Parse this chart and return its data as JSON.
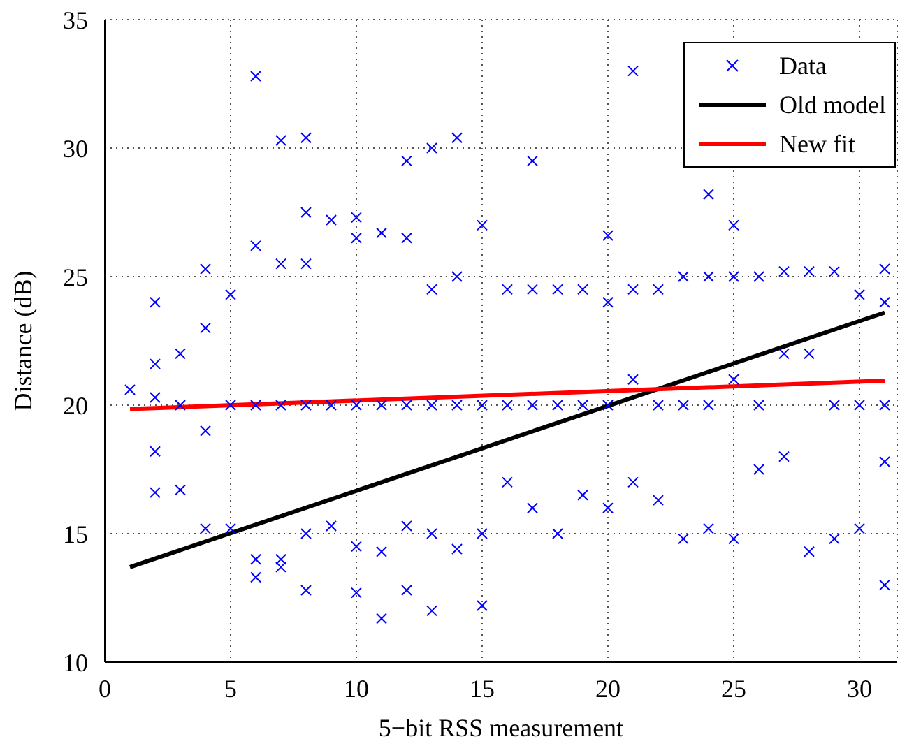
{
  "chart_data": {
    "type": "scatter",
    "xlabel": "5−bit RSS measurement",
    "ylabel": "Distance (dB)",
    "xlim": [
      0,
      31.5
    ],
    "xticks": [
      0,
      5,
      10,
      15,
      20,
      25,
      30
    ],
    "ylim": [
      10,
      35
    ],
    "yticks": [
      10,
      15,
      20,
      25,
      30,
      35
    ],
    "grid": true,
    "legend": "top right",
    "series": [
      {
        "name": "Data",
        "marker": "cross",
        "color": "#0000ff",
        "x": [
          1,
          2,
          2,
          2,
          2,
          2,
          3,
          3,
          3,
          4,
          4,
          4,
          4,
          5,
          5,
          5,
          6,
          6,
          6,
          6,
          6,
          7,
          7,
          7,
          7,
          7,
          8,
          8,
          8,
          8,
          8,
          8,
          9,
          9,
          9,
          10,
          10,
          10,
          10,
          10,
          11,
          11,
          11,
          11,
          12,
          12,
          12,
          12,
          12,
          13,
          13,
          13,
          13,
          13,
          14,
          14,
          14,
          14,
          15,
          15,
          15,
          15,
          16,
          16,
          16,
          17,
          17,
          17,
          17,
          18,
          18,
          18,
          19,
          19,
          19,
          20,
          20,
          20,
          20,
          21,
          21,
          21,
          21,
          22,
          22,
          22,
          23,
          23,
          23,
          24,
          24,
          24,
          24,
          25,
          25,
          25,
          25,
          26,
          26,
          26,
          27,
          27,
          27,
          28,
          28,
          28,
          29,
          29,
          29,
          30,
          30,
          30,
          31,
          31,
          31,
          31,
          31
        ],
        "values": [
          20.6,
          24,
          21.6,
          20.3,
          18.2,
          16.6,
          22,
          20,
          16.7,
          25.3,
          23,
          19,
          15.2,
          24.3,
          20,
          15.2,
          32.8,
          26.2,
          20,
          14,
          13.3,
          30.3,
          25.5,
          20,
          14,
          13.7,
          30.4,
          27.5,
          25.5,
          20,
          15,
          12.8,
          27.2,
          20,
          15.3,
          27.3,
          26.5,
          20,
          14.5,
          12.7,
          26.7,
          20,
          14.3,
          11.7,
          29.5,
          26.5,
          20,
          15.3,
          12.8,
          30,
          24.5,
          20,
          15,
          12,
          30.4,
          25,
          20,
          14.4,
          27,
          20,
          15,
          12.2,
          24.5,
          20,
          17,
          29.5,
          24.5,
          20,
          16,
          24.5,
          20,
          15,
          24.5,
          20,
          16.5,
          26.6,
          24,
          20,
          16,
          33,
          24.5,
          21,
          17,
          24.5,
          20,
          16.3,
          25,
          20,
          14.8,
          28.2,
          25,
          20,
          15.2,
          27,
          25,
          21,
          14.8,
          25,
          20,
          17.5,
          25.2,
          22,
          18,
          25.2,
          22,
          14.3,
          25.2,
          20,
          14.8,
          24.3,
          20,
          15.2,
          25.3,
          24,
          20,
          17.8,
          13
        ]
      },
      {
        "name": "Old model",
        "type": "line",
        "color": "#000000",
        "line_style": "solid",
        "marker": "none",
        "x": [
          1,
          31
        ],
        "values": [
          13.7,
          23.6
        ]
      },
      {
        "name": "New fit",
        "type": "line",
        "color": "#ff0000",
        "line_style": "solid",
        "marker": "none",
        "x": [
          1,
          31
        ],
        "values": [
          19.85,
          20.95
        ]
      }
    ]
  }
}
